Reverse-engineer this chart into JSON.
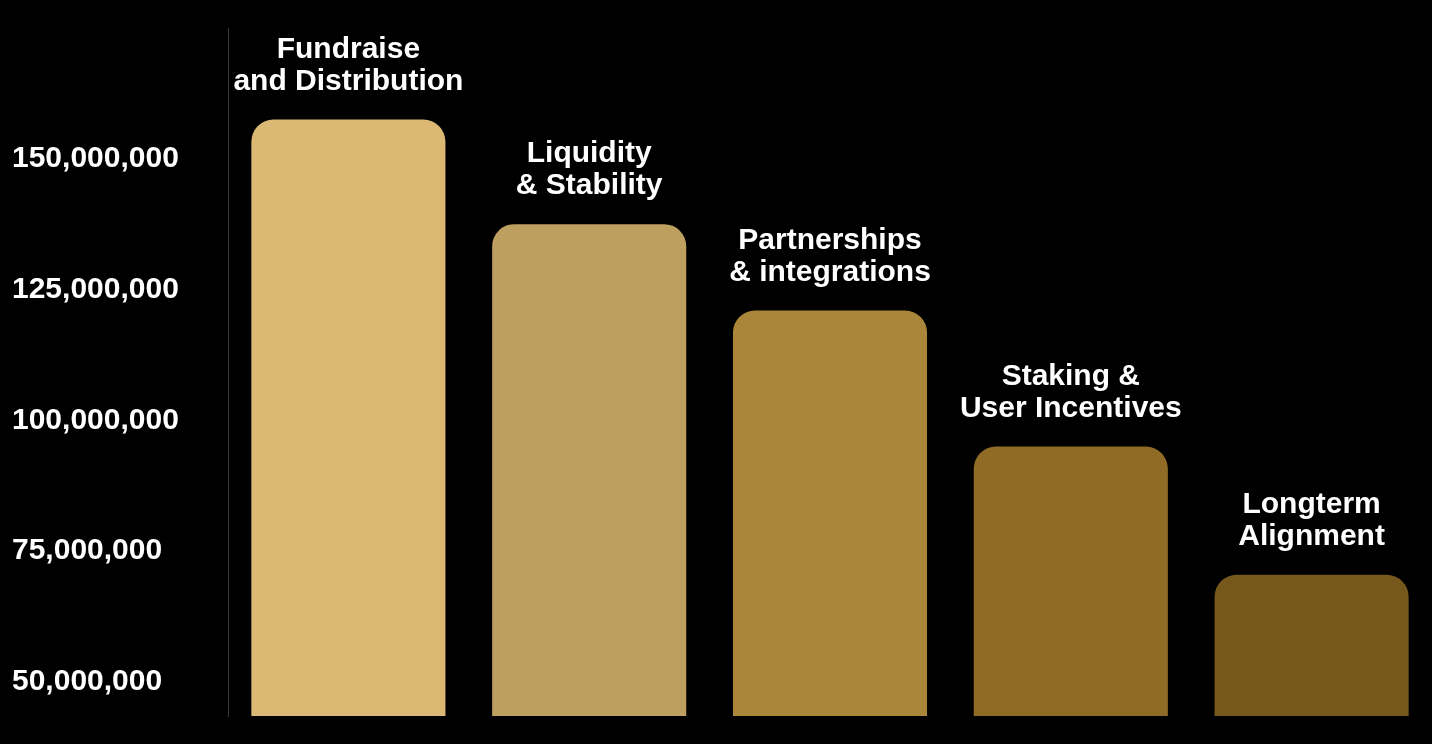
{
  "chart_data": {
    "type": "bar",
    "categories": [
      "Fundraise\nand Distribution",
      "Liquidity\n& Stability",
      "Partnerships\n& integrations",
      "Staking &\nUser Incentives",
      "Longterm\nAlignment"
    ],
    "values": [
      157500000,
      137500000,
      121000000,
      95000000,
      70500000
    ],
    "colors": [
      "#dbb975",
      "#bd9f5f",
      "#aa863a",
      "#8f6b25",
      "#77581c"
    ],
    "ylim": [
      43500000,
      175000000
    ],
    "yticks": [
      {
        "value": 50000000,
        "label": "50,000,000"
      },
      {
        "value": 75000000,
        "label": "75,000,000"
      },
      {
        "value": 100000000,
        "label": "100,000,000"
      },
      {
        "value": 125000000,
        "label": "125,000,000"
      },
      {
        "value": 150000000,
        "label": "150,000,000"
      }
    ],
    "grid": false,
    "legend": false
  }
}
